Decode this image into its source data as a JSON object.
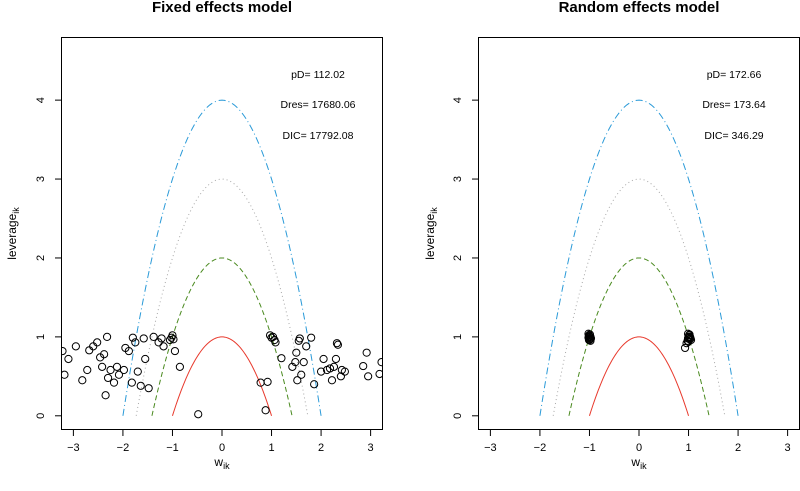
{
  "chart_data": [
    {
      "type": "scatter",
      "title": "Fixed effects model",
      "xlabel": "w",
      "xlabel_sub": "ik",
      "ylabel": "leverage",
      "ylabel_sub": "ik",
      "xlim": [
        -3.25,
        3.25
      ],
      "ylim": [
        -0.18,
        4.8
      ],
      "xticks": [
        -3,
        -2,
        -1,
        0,
        1,
        2,
        3
      ],
      "yticks": [
        0,
        1,
        2,
        3,
        4
      ],
      "stats": [
        "pD= 112.02",
        "Dres= 17680.06",
        "DIC= 17792.08"
      ],
      "curves": [
        {
          "c": 1,
          "color": "#e8392c",
          "style": "solid"
        },
        {
          "c": 2,
          "color": "#4a8a1f",
          "style": "dashed"
        },
        {
          "c": 3,
          "color": "#a8a8a8",
          "style": "dotted"
        },
        {
          "c": 4,
          "color": "#2a9ad8",
          "style": "dashdot"
        }
      ],
      "points": [
        [
          -3.22,
          0.82
        ],
        [
          -3.18,
          0.52
        ],
        [
          -3.1,
          0.72
        ],
        [
          -2.95,
          0.88
        ],
        [
          -2.82,
          0.45
        ],
        [
          -2.72,
          0.58
        ],
        [
          -2.68,
          0.83
        ],
        [
          -2.6,
          0.88
        ],
        [
          -2.52,
          0.93
        ],
        [
          -2.46,
          0.74
        ],
        [
          -2.42,
          0.62
        ],
        [
          -2.38,
          0.78
        ],
        [
          -2.35,
          0.26
        ],
        [
          -2.32,
          1.0
        ],
        [
          -2.3,
          0.48
        ],
        [
          -2.25,
          0.58
        ],
        [
          -2.18,
          0.42
        ],
        [
          -2.12,
          0.62
        ],
        [
          -2.08,
          0.52
        ],
        [
          -1.98,
          0.58
        ],
        [
          -1.95,
          0.86
        ],
        [
          -1.88,
          0.82
        ],
        [
          -1.82,
          0.42
        ],
        [
          -1.8,
          0.99
        ],
        [
          -1.75,
          0.93
        ],
        [
          -1.7,
          0.56
        ],
        [
          -1.64,
          0.38
        ],
        [
          -1.58,
          0.98
        ],
        [
          -1.55,
          0.72
        ],
        [
          -1.48,
          0.35
        ],
        [
          -1.38,
          1.0
        ],
        [
          -1.28,
          0.93
        ],
        [
          -1.22,
          0.98
        ],
        [
          -1.18,
          0.88
        ],
        [
          -1.05,
          0.96
        ],
        [
          -1.02,
          0.99
        ],
        [
          -1.0,
          1.02
        ],
        [
          -0.98,
          0.97
        ],
        [
          -0.95,
          0.82
        ],
        [
          -0.85,
          0.62
        ],
        [
          -0.48,
          0.02
        ],
        [
          0.78,
          0.42
        ],
        [
          0.88,
          0.07
        ],
        [
          0.92,
          0.43
        ],
        [
          0.97,
          1.02
        ],
        [
          1.0,
          0.99
        ],
        [
          1.03,
          1.0
        ],
        [
          1.06,
          0.96
        ],
        [
          1.08,
          0.93
        ],
        [
          1.2,
          0.73
        ],
        [
          1.42,
          0.62
        ],
        [
          1.48,
          0.68
        ],
        [
          1.5,
          0.8
        ],
        [
          1.52,
          0.45
        ],
        [
          1.55,
          0.95
        ],
        [
          1.57,
          0.98
        ],
        [
          1.6,
          0.52
        ],
        [
          1.65,
          0.68
        ],
        [
          1.7,
          0.88
        ],
        [
          1.8,
          0.99
        ],
        [
          1.86,
          0.4
        ],
        [
          2.0,
          0.56
        ],
        [
          2.05,
          0.72
        ],
        [
          2.12,
          0.58
        ],
        [
          2.18,
          0.6
        ],
        [
          2.22,
          0.45
        ],
        [
          2.26,
          0.62
        ],
        [
          2.3,
          0.72
        ],
        [
          2.32,
          0.92
        ],
        [
          2.34,
          0.9
        ],
        [
          2.4,
          0.5
        ],
        [
          2.42,
          0.58
        ],
        [
          2.48,
          0.56
        ],
        [
          2.85,
          0.63
        ],
        [
          2.92,
          0.8
        ],
        [
          2.95,
          0.5
        ],
        [
          3.18,
          0.53
        ],
        [
          3.22,
          0.68
        ]
      ]
    },
    {
      "type": "scatter",
      "title": "Random effects model",
      "xlabel": "w",
      "xlabel_sub": "ik",
      "ylabel": "leverage",
      "ylabel_sub": "ik",
      "xlim": [
        -3.25,
        3.25
      ],
      "ylim": [
        -0.18,
        4.8
      ],
      "xticks": [
        -3,
        -2,
        -1,
        0,
        1,
        2,
        3
      ],
      "yticks": [
        0,
        1,
        2,
        3,
        4
      ],
      "stats": [
        "pD= 172.66",
        "Dres= 173.64",
        "DIC= 346.29"
      ],
      "curves": [
        {
          "c": 1,
          "color": "#e8392c",
          "style": "solid"
        },
        {
          "c": 2,
          "color": "#4a8a1f",
          "style": "dashed"
        },
        {
          "c": 3,
          "color": "#a8a8a8",
          "style": "dotted"
        },
        {
          "c": 4,
          "color": "#2a9ad8",
          "style": "dashdot"
        }
      ],
      "points": [
        [
          -1.02,
          1.04
        ],
        [
          -1.01,
          1.02
        ],
        [
          -1.0,
          1.0
        ],
        [
          -0.99,
          0.98
        ],
        [
          -1.0,
          0.96
        ],
        [
          -0.98,
          1.0
        ],
        [
          -1.01,
          0.99
        ],
        [
          -0.99,
          1.03
        ],
        [
          -1.0,
          0.97
        ],
        [
          -0.98,
          0.95
        ],
        [
          -1.02,
          0.99
        ],
        [
          -1.0,
          1.01
        ],
        [
          -0.97,
          0.98
        ],
        [
          -1.01,
          0.96
        ],
        [
          0.93,
          0.86
        ],
        [
          0.96,
          0.92
        ],
        [
          0.98,
          0.95
        ],
        [
          0.99,
          0.98
        ],
        [
          1.0,
          1.0
        ],
        [
          1.01,
          1.02
        ],
        [
          1.02,
          0.97
        ],
        [
          1.0,
          0.94
        ],
        [
          1.03,
          1.0
        ],
        [
          1.04,
          0.98
        ],
        [
          0.99,
          1.04
        ],
        [
          1.02,
          1.03
        ],
        [
          1.05,
          0.96
        ],
        [
          1.01,
          0.99
        ]
      ]
    }
  ]
}
